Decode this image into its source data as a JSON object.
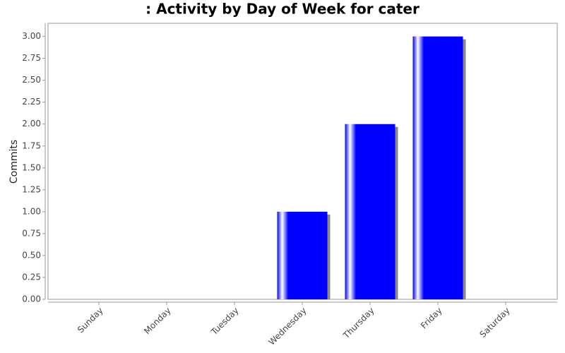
{
  "chart_data": {
    "type": "bar",
    "title": ": Activity by Day of Week for cater",
    "y_label": "Commits",
    "categories": [
      "Sunday",
      "Monday",
      "Tuesday",
      "Wednesday",
      "Thursday",
      "Friday",
      "Saturday"
    ],
    "values": [
      0,
      0,
      0,
      1,
      2,
      3,
      0
    ],
    "color": "#0000ff",
    "ylim": [
      0,
      3.15
    ],
    "yticks": [
      {
        "value": 0,
        "label": "0.00"
      },
      {
        "value": 0.25,
        "label": "0.25"
      },
      {
        "value": 0.5,
        "label": "0.50"
      },
      {
        "value": 0.75,
        "label": "0.75"
      },
      {
        "value": 1,
        "label": "1.00"
      },
      {
        "value": 1.25,
        "label": "1.25"
      },
      {
        "value": 1.5,
        "label": "1.50"
      },
      {
        "value": 1.75,
        "label": "1.75"
      },
      {
        "value": 2,
        "label": "2.00"
      },
      {
        "value": 2.25,
        "label": "2.25"
      },
      {
        "value": 2.5,
        "label": "2.50"
      },
      {
        "value": 2.75,
        "label": "2.75"
      },
      {
        "value": 3,
        "label": "3.00"
      }
    ],
    "grid": false
  }
}
